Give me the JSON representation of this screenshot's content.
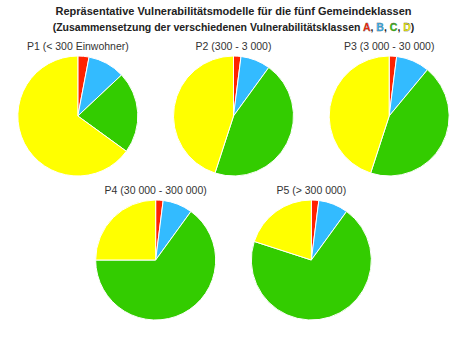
{
  "chart_data": {
    "type": "pie",
    "title": "Repräsentative Vulnerabilitätsmodelle für die fünf Gemeindeklassen",
    "subtitle": "(Zusammensetzung der verschiedenen Vulnerabilitätsklassen A, B, C, D)",
    "categories": [
      "A",
      "B",
      "C",
      "D"
    ],
    "colors": [
      "#ff2200",
      "#33bbff",
      "#33cc00",
      "#ffff00"
    ],
    "series": [
      {
        "name": "P1 (< 300 Einwohner)",
        "values": [
          0.03,
          0.1,
          0.22,
          0.65
        ]
      },
      {
        "name": "P2 (300 - 3 000)",
        "values": [
          0.02,
          0.08,
          0.45,
          0.45
        ]
      },
      {
        "name": "P3 (3 000 - 30 000)",
        "values": [
          0.02,
          0.09,
          0.44,
          0.45
        ]
      },
      {
        "name": "P4 (30 000 - 300 000)",
        "values": [
          0.02,
          0.08,
          0.65,
          0.25
        ]
      },
      {
        "name": "P5 (> 300 000)",
        "values": [
          0.02,
          0.08,
          0.7,
          0.2
        ]
      }
    ]
  }
}
